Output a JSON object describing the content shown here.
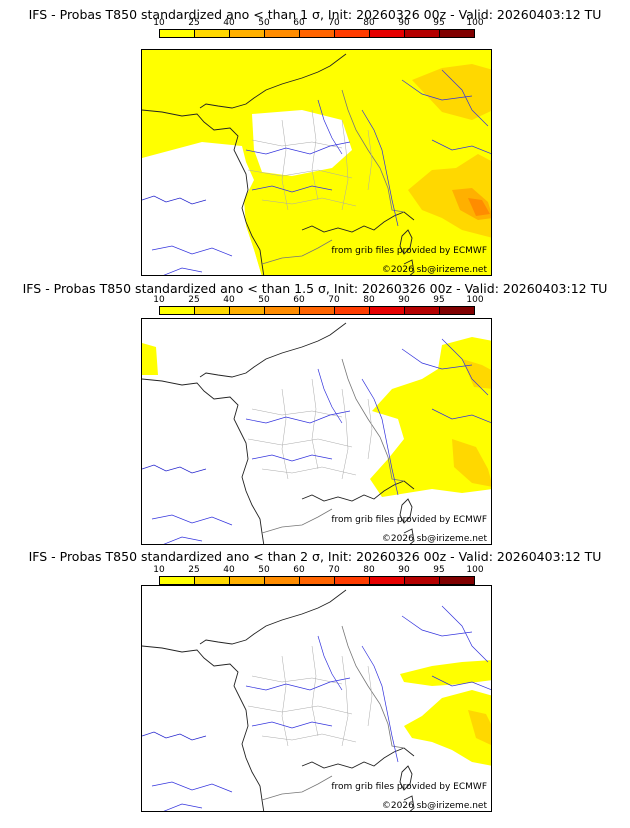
{
  "legend": {
    "ticks": [
      "10",
      "25",
      "40",
      "50",
      "60",
      "70",
      "80",
      "90",
      "95",
      "100"
    ],
    "colors": [
      "#ffff00",
      "#ffd800",
      "#ffb000",
      "#ff8c00",
      "#ff6400",
      "#ff3c00",
      "#e60000",
      "#b40000",
      "#800000"
    ]
  },
  "panels": [
    {
      "title": "IFS - Probas T850  standardized ano < than 1 σ, Init: 20260326 00z - Valid: 20260403:12 TU",
      "credit_source": "from grib files provided by ECMWF",
      "credit_site": "©2026 sb@irizeme.net"
    },
    {
      "title": "IFS - Probas T850  standardized ano < than 1.5 σ, Init: 20260326 00z - Valid: 20260403:12 TU",
      "credit_source": "from grib files provided by ECMWF",
      "credit_site": "©2026 sb@irizeme.net"
    },
    {
      "title": "IFS - Probas T850  standardized ano < than 2 σ, Init: 20260326 00z - Valid: 20260403:12 TU",
      "credit_source": "from grib files provided by ECMWF",
      "credit_site": "©2026 sb@irizeme.net"
    }
  ]
}
